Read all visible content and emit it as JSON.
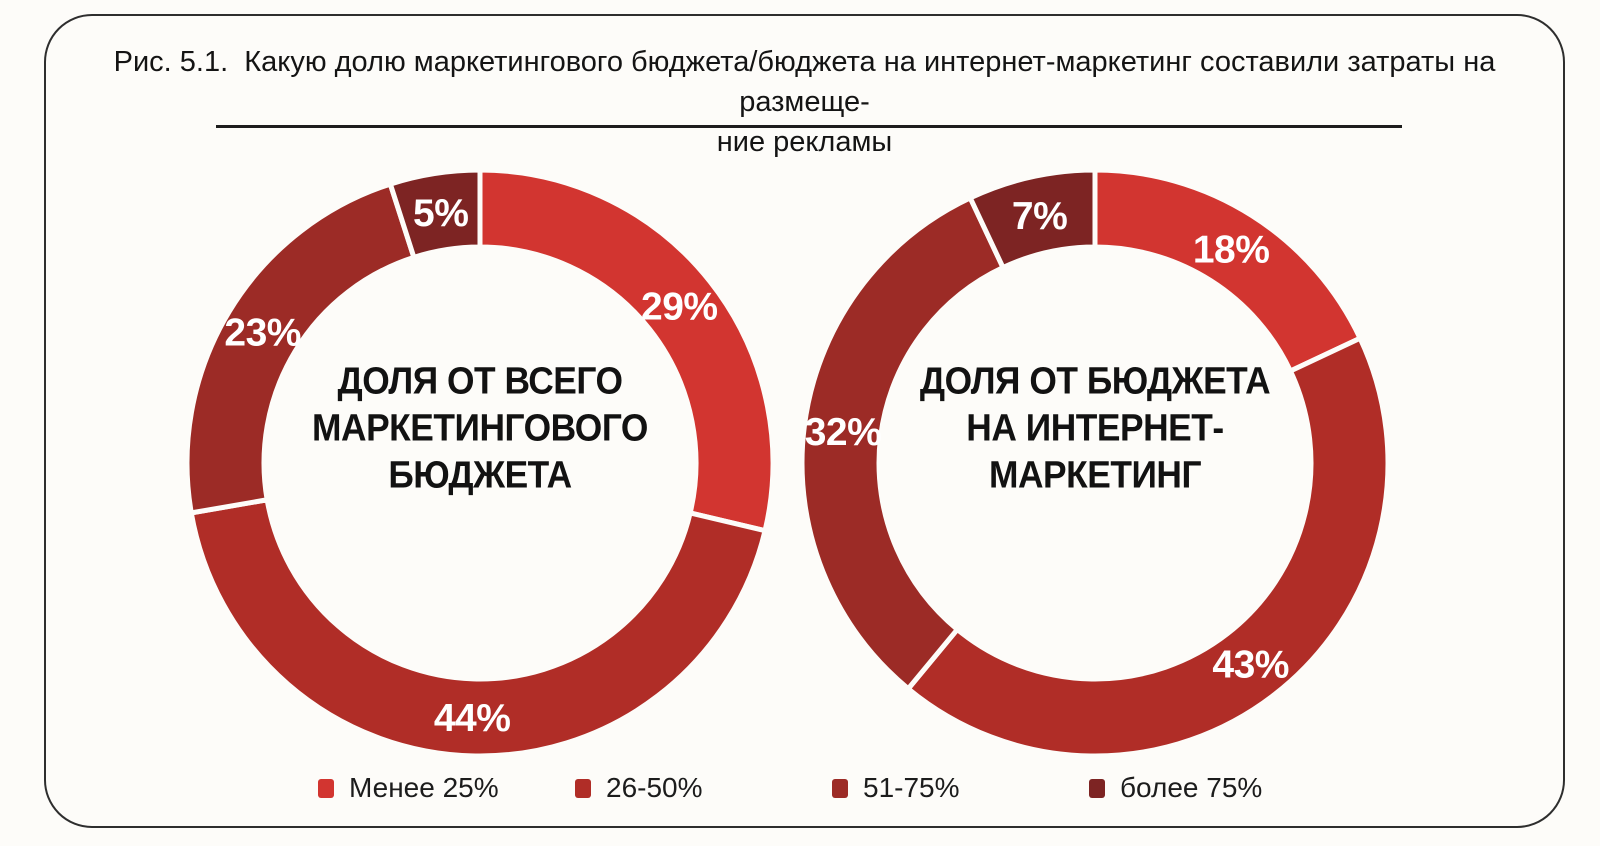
{
  "figure": {
    "caption_lines": [
      "Рис. 5.1.  Какую долю маркетингового бюджета/бюджета на интернет-маркетинг составили затраты на размеще-",
      "ние рекламы"
    ]
  },
  "palette": {
    "bright_red": "#d23530",
    "mid_red": "#b02d27",
    "dark_red": "#9c2b26",
    "maroon": "#7d2423",
    "frame_border": "#2e2e2e",
    "background": "#fdfcf9",
    "text": "#141414"
  },
  "legend": {
    "items": [
      {
        "label": "Менее 25%",
        "color": "#d23530"
      },
      {
        "label": "26-50%",
        "color": "#b02d27"
      },
      {
        "label": "51-75%",
        "color": "#9c2b26"
      },
      {
        "label": "более 75%",
        "color": "#7d2423"
      }
    ]
  },
  "chart_data": [
    {
      "type": "pie",
      "variant": "donut",
      "name": "total-marketing-budget",
      "center_title_lines": [
        "ДОЛЯ ОТ ВСЕГО",
        "МАРКЕТИНГОВОГО",
        "БЮДЖЕТА"
      ],
      "categories": [
        "Менее 25%",
        "26-50%",
        "51-75%",
        "более 75%"
      ],
      "values": [
        29,
        44,
        23,
        5
      ],
      "slice_labels": [
        "29%",
        "44%",
        "23%",
        "5%"
      ],
      "colors": [
        "#d23530",
        "#b02d27",
        "#9c2b26",
        "#7d2423"
      ],
      "start_angle_deg": 0,
      "direction": "clockwise",
      "legend_position": "bottom"
    },
    {
      "type": "pie",
      "variant": "donut",
      "name": "internet-marketing-budget",
      "center_title_lines": [
        "ДОЛЯ ОТ БЮДЖЕТА",
        "НА ИНТЕРНЕТ-",
        "МАРКЕТИНГ"
      ],
      "categories": [
        "Менее 25%",
        "26-50%",
        "51-75%",
        "более 75%"
      ],
      "values": [
        18,
        43,
        32,
        7
      ],
      "slice_labels": [
        "18%",
        "43%",
        "32%",
        "7%"
      ],
      "colors": [
        "#d23530",
        "#b02d27",
        "#9c2b26",
        "#7d2423"
      ],
      "start_angle_deg": 0,
      "direction": "clockwise",
      "legend_position": "bottom"
    }
  ]
}
